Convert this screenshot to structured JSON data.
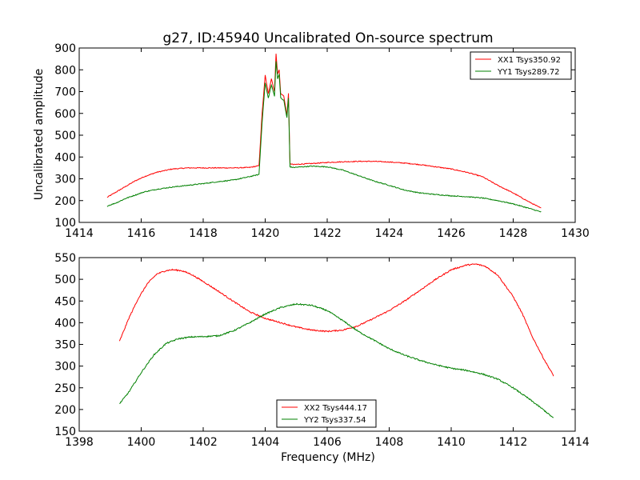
{
  "figure": {
    "title": "g27, ID:45940 Uncalibrated On-source spectrum",
    "shared_xlabel": "Frequency (MHz)"
  },
  "chart_data": [
    {
      "type": "line",
      "title": "g27, ID:45940 Uncalibrated On-source spectrum",
      "xlabel": "",
      "ylabel": "Uncalibrated amplitude",
      "xlim": [
        1414,
        1430
      ],
      "ylim": [
        100,
        900
      ],
      "xticks": [
        1414,
        1416,
        1418,
        1420,
        1422,
        1424,
        1426,
        1428,
        1430
      ],
      "yticks": [
        100,
        200,
        300,
        400,
        500,
        600,
        700,
        800,
        900
      ],
      "grid": false,
      "legend_position": "top-right",
      "series": [
        {
          "name": "XX1 Tsys350.92",
          "color": "#ff0000",
          "x": [
            1414.9,
            1415.2,
            1415.5,
            1415.8,
            1416.1,
            1416.5,
            1417.0,
            1417.5,
            1418.0,
            1418.5,
            1419.0,
            1419.5,
            1419.8,
            1419.9,
            1420.0,
            1420.1,
            1420.2,
            1420.3,
            1420.35,
            1420.4,
            1420.45,
            1420.5,
            1420.6,
            1420.7,
            1420.75,
            1420.8,
            1420.9,
            1421.2,
            1421.5,
            1422.0,
            1422.5,
            1423.0,
            1423.5,
            1424.0,
            1424.5,
            1425.0,
            1425.5,
            1426.0,
            1426.5,
            1427.0,
            1427.5,
            1428.0,
            1428.5,
            1428.9
          ],
          "y": [
            215,
            240,
            265,
            290,
            310,
            330,
            345,
            350,
            350,
            350,
            350,
            352,
            360,
            600,
            775,
            690,
            760,
            700,
            875,
            780,
            800,
            690,
            680,
            590,
            690,
            370,
            365,
            368,
            370,
            375,
            378,
            380,
            380,
            377,
            372,
            365,
            355,
            345,
            330,
            310,
            270,
            235,
            195,
            165
          ]
        },
        {
          "name": "YY1 Tsys289.72",
          "color": "#008000",
          "x": [
            1414.9,
            1415.2,
            1415.5,
            1415.8,
            1416.1,
            1416.5,
            1417.0,
            1417.5,
            1418.0,
            1418.5,
            1419.0,
            1419.5,
            1419.8,
            1419.9,
            1420.0,
            1420.1,
            1420.2,
            1420.3,
            1420.35,
            1420.4,
            1420.45,
            1420.5,
            1420.6,
            1420.7,
            1420.75,
            1420.8,
            1420.9,
            1421.2,
            1421.5,
            1422.0,
            1422.5,
            1423.0,
            1423.5,
            1424.0,
            1424.5,
            1425.0,
            1425.5,
            1426.0,
            1426.5,
            1427.0,
            1427.5,
            1428.0,
            1428.5,
            1428.9
          ],
          "y": [
            175,
            190,
            210,
            225,
            240,
            252,
            262,
            270,
            278,
            287,
            295,
            310,
            320,
            560,
            740,
            670,
            730,
            680,
            840,
            760,
            780,
            670,
            660,
            580,
            670,
            355,
            352,
            355,
            358,
            355,
            340,
            315,
            290,
            270,
            248,
            235,
            228,
            222,
            218,
            212,
            200,
            185,
            165,
            148
          ]
        }
      ]
    },
    {
      "type": "line",
      "title": "",
      "xlabel": "Frequency (MHz)",
      "ylabel": "",
      "xlim": [
        1398,
        1414
      ],
      "ylim": [
        150,
        550
      ],
      "xticks": [
        1398,
        1400,
        1402,
        1404,
        1406,
        1408,
        1410,
        1412,
        1414
      ],
      "yticks": [
        150,
        200,
        250,
        300,
        350,
        400,
        450,
        500,
        550
      ],
      "grid": false,
      "legend_position": "bottom-center",
      "series": [
        {
          "name": "XX2 Tsys444.17",
          "color": "#ff0000",
          "x": [
            1399.3,
            1399.6,
            1399.9,
            1400.2,
            1400.5,
            1400.8,
            1401.0,
            1401.3,
            1401.6,
            1402.0,
            1402.5,
            1403.0,
            1403.5,
            1404.0,
            1404.5,
            1405.0,
            1405.5,
            1406.0,
            1406.5,
            1407.0,
            1407.5,
            1408.0,
            1408.5,
            1409.0,
            1409.5,
            1410.0,
            1410.5,
            1410.8,
            1411.1,
            1411.5,
            1412.0,
            1412.3,
            1412.6,
            1413.0,
            1413.3
          ],
          "y": [
            357,
            410,
            455,
            490,
            512,
            520,
            522,
            520,
            512,
            495,
            472,
            448,
            425,
            410,
            400,
            390,
            383,
            380,
            383,
            393,
            410,
            428,
            450,
            475,
            500,
            522,
            533,
            535,
            530,
            510,
            460,
            420,
            370,
            315,
            278
          ]
        },
        {
          "name": "YY2 Tsys337.54",
          "color": "#008000",
          "x": [
            1399.3,
            1399.6,
            1400.0,
            1400.4,
            1400.8,
            1401.2,
            1401.6,
            1402.0,
            1402.5,
            1403.0,
            1403.5,
            1404.0,
            1404.5,
            1405.0,
            1405.5,
            1406.0,
            1406.5,
            1407.0,
            1407.5,
            1408.0,
            1408.5,
            1409.0,
            1409.5,
            1410.0,
            1410.5,
            1411.0,
            1411.5,
            1412.0,
            1412.5,
            1413.0,
            1413.3
          ],
          "y": [
            213,
            240,
            285,
            325,
            352,
            363,
            367,
            368,
            370,
            382,
            400,
            420,
            435,
            443,
            440,
            428,
            405,
            380,
            360,
            340,
            325,
            313,
            303,
            295,
            290,
            282,
            270,
            250,
            225,
            198,
            180
          ]
        }
      ]
    }
  ]
}
